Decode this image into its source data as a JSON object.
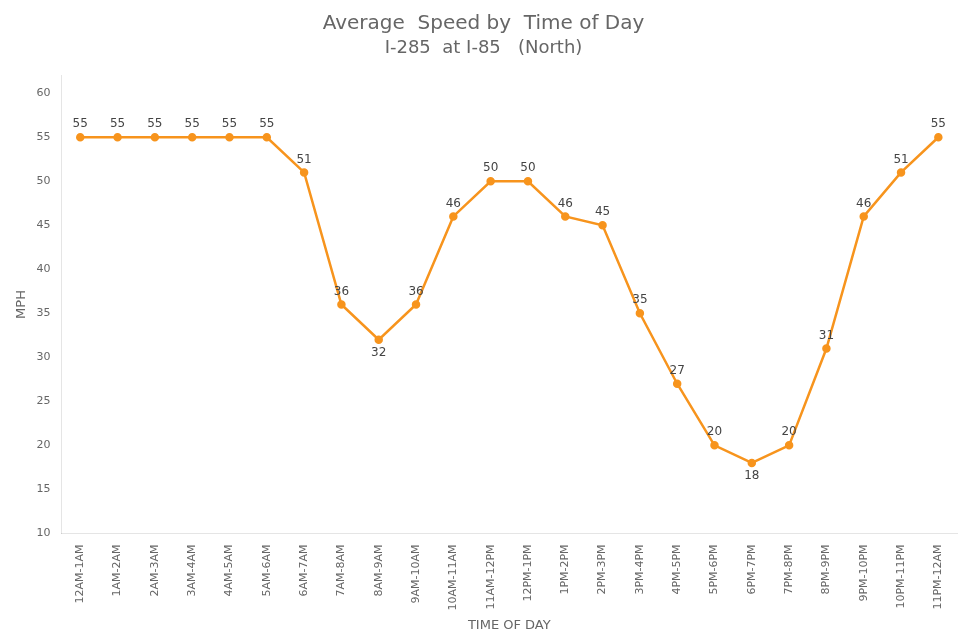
{
  "chart_data": {
    "type": "line",
    "title": "Average  Speed by  Time of Day",
    "subtitle": "I-285  at I-85   (North)",
    "x_label": "TIME OF DAY",
    "y_label": "MPH",
    "categories": [
      "12AM-1AM",
      "1AM-2AM",
      "2AM-3AM",
      "3AM-4AM",
      "4AM-5AM",
      "5AM-6AM",
      "6AM-7AM",
      "7AM-8AM",
      "8AM-9AM",
      "9AM-10AM",
      "10AM-11AM",
      "11AM-12PM",
      "12PM-1PM",
      "1PM-2PM",
      "2PM-3PM",
      "3PM-4PM",
      "4PM-5PM",
      "5PM-6PM",
      "6PM-7PM",
      "7PM-8PM",
      "8PM-9PM",
      "9PM-10PM",
      "10PM-11PM",
      "11PM-12AM"
    ],
    "values": [
      55,
      55,
      55,
      55,
      55,
      55,
      51,
      36,
      32,
      36,
      46,
      50,
      50,
      46,
      45,
      35,
      27,
      20,
      18,
      20,
      31,
      46,
      51,
      55
    ],
    "color": "#F7941D",
    "marker": "circle",
    "ylim": [
      10,
      62
    ],
    "yticks": [
      10,
      15,
      20,
      25,
      30,
      35,
      40,
      45,
      50,
      55,
      60
    ],
    "grid": false,
    "data_labels": true
  }
}
